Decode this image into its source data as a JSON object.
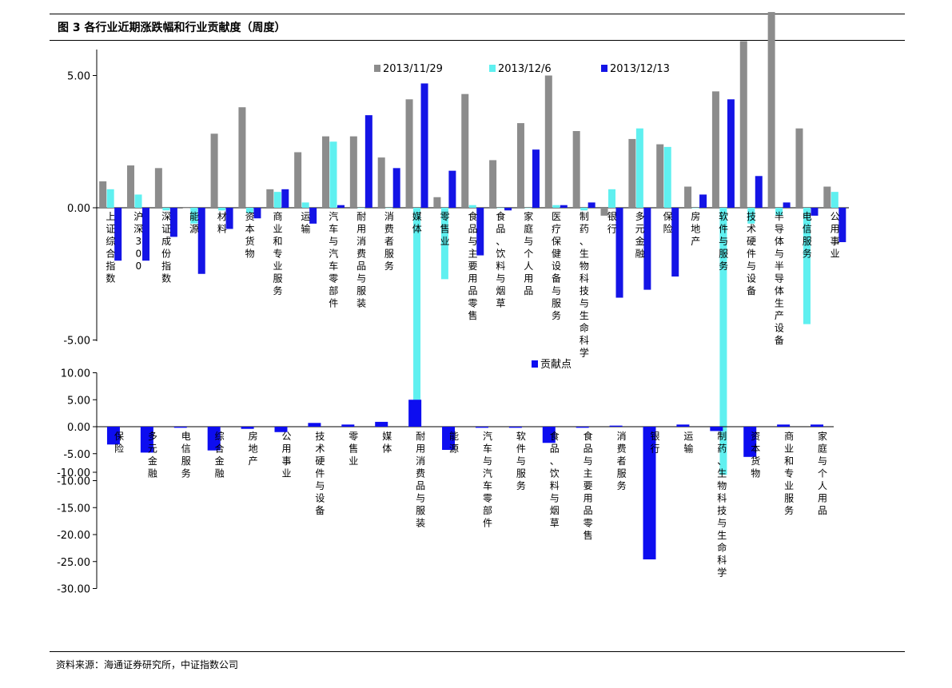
{
  "figure": {
    "title": "图 3 各行业近期涨跌幅和行业贡献度（周度）",
    "source": "资料来源：海通证券研究所，中证指数公司"
  },
  "colors": {
    "s1": "#8c8c8c",
    "s2": "#5ff0f0",
    "s3": "#1414e6",
    "contribution": "#0d0df0"
  },
  "chart_data": [
    {
      "type": "bar",
      "title": "",
      "xlabel": "",
      "ylabel": "",
      "ylim": [
        -10,
        12
      ],
      "yticks": [
        "10.00",
        "5.00",
        "0.00",
        "-5.00",
        "-10.00"
      ],
      "grid": false,
      "legend_position": "top",
      "categories": [
        "上证综合指数",
        "沪深300",
        "深证成份指数",
        "能源",
        "材料",
        "资本货物",
        "商业和专业服务",
        "运输",
        "汽车与汽车零部件",
        "耐用消费品与服装",
        "消费者服务",
        "媒体",
        "零售业",
        "食品与主要用品零售",
        "食品、饮料与烟草",
        "家庭与个人用品",
        "医疗保健设备与服务",
        "制药、生物科技与生命科学",
        "银行",
        "多元金融",
        "保险",
        "房地产",
        "软件与服务",
        "技术硬件与设备",
        "半导体与半导体生产设备",
        "电信服务",
        "公用事业"
      ],
      "series": [
        {
          "name": "2013/11/29",
          "values": [
            1.0,
            1.6,
            1.5,
            0.0,
            2.8,
            3.8,
            0.7,
            2.1,
            2.7,
            2.7,
            1.9,
            4.1,
            0.4,
            4.3,
            1.8,
            3.2,
            5.0,
            2.9,
            -0.3,
            2.6,
            2.4,
            0.8,
            4.4,
            6.3,
            7.4,
            3.0,
            0.8
          ]
        },
        {
          "name": "2013/12/6",
          "values": [
            0.7,
            0.5,
            -0.1,
            -0.6,
            -0.1,
            -0.2,
            0.6,
            0.2,
            2.5,
            0.0,
            0.0,
            -7.5,
            -2.7,
            0.1,
            0.0,
            0.0,
            0.1,
            -0.1,
            0.7,
            3.0,
            2.3,
            0.0,
            -10.1,
            -0.6,
            -0.3,
            -4.4,
            0.6
          ]
        },
        {
          "name": "2013/12/13",
          "values": [
            -2.0,
            -2.0,
            -1.1,
            -2.5,
            -0.8,
            -0.4,
            0.7,
            -0.6,
            0.1,
            3.5,
            1.5,
            4.7,
            1.4,
            -1.8,
            -0.1,
            2.2,
            0.1,
            0.2,
            -3.4,
            -3.1,
            -2.6,
            0.5,
            4.1,
            1.2,
            0.2,
            -0.3,
            -1.3
          ]
        }
      ]
    },
    {
      "type": "bar",
      "title": "",
      "xlabel": "",
      "ylabel": "",
      "ylim": [
        -30,
        10
      ],
      "yticks": [
        "10.00",
        "5.00",
        "0.00",
        "-5.00",
        "-10.00",
        "-15.00",
        "-20.00",
        "-25.00",
        "-30.00"
      ],
      "grid": false,
      "legend_position": "top",
      "categories": [
        "保险",
        "多元金融",
        "电信服务",
        "综合金融",
        "房地产",
        "公用事业",
        "技术硬件与设备",
        "零售业",
        "媒体",
        "耐用消费品与服装",
        "能源",
        "汽车与汽车零部件",
        "软件与服务",
        "食品、饮料与烟草",
        "食品与主要用品零售",
        "消费者服务",
        "银行",
        "运输",
        "制药、生物科技与生命科学",
        "资本货物",
        "商业和专业服务",
        "家庭与个人用品"
      ],
      "series": [
        {
          "name": "贡献点",
          "values": [
            -3.3,
            -4.8,
            -0.2,
            -4.4,
            -0.4,
            -1.0,
            0.7,
            0.4,
            0.9,
            5.0,
            -4.3,
            -0.2,
            -0.2,
            -3.0,
            -0.2,
            0.2,
            -24.6,
            0.4,
            -0.8,
            -5.6,
            0.4,
            0.4
          ]
        }
      ]
    }
  ]
}
